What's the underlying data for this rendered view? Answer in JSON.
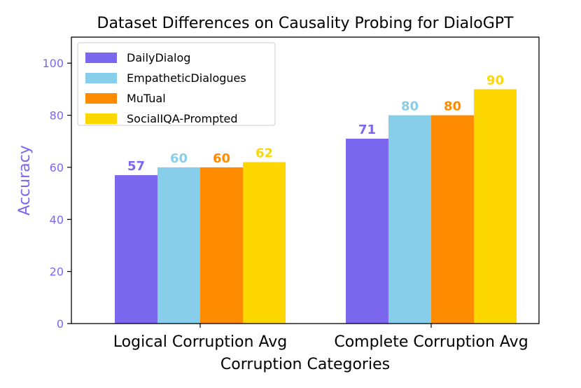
{
  "chart_data": {
    "type": "bar",
    "title": "Dataset Differences on Causality Probing for DialoGPT",
    "xlabel": "Corruption Categories",
    "ylabel": "Accuracy",
    "categories": [
      "Logical Corruption Avg",
      "Complete Corruption Avg"
    ],
    "series": [
      {
        "name": "DailyDialog",
        "values": [
          57,
          71
        ],
        "color": "#7B68EE"
      },
      {
        "name": "EmpatheticDialogues",
        "values": [
          60,
          80
        ],
        "color": "#87CEEB"
      },
      {
        "name": "MuTual",
        "values": [
          60,
          80
        ],
        "color": "#FF8C00"
      },
      {
        "name": "SocialIQA-Prompted",
        "values": [
          62,
          90
        ],
        "color": "#FFD700"
      }
    ],
    "ylim": [
      0,
      110
    ],
    "yticks": [
      0,
      20,
      40,
      60,
      80,
      100
    ],
    "ytick_labels": [
      "0",
      "20",
      "40",
      "60",
      "80",
      "100"
    ],
    "y_axis_color": "#7B68EE",
    "grid": false,
    "legend_position": "top-left"
  }
}
